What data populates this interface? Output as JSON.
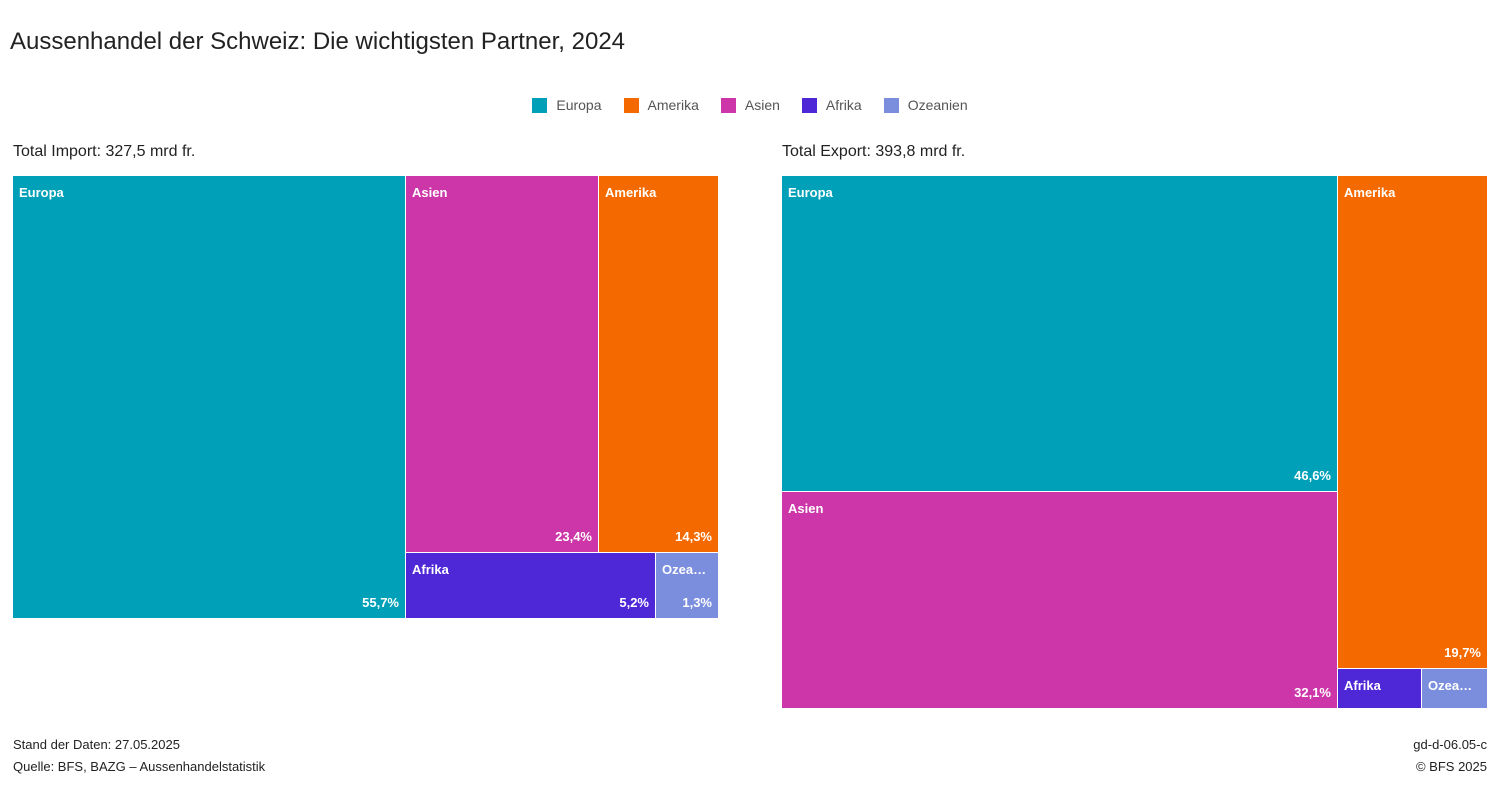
{
  "title": "Aussenhandel der Schweiz: Die wichtigsten Partner, 2024",
  "legend": [
    {
      "label": "Europa",
      "color": "#00a1b8"
    },
    {
      "label": "Amerika",
      "color": "#f46a00"
    },
    {
      "label": "Asien",
      "color": "#cc36a8"
    },
    {
      "label": "Afrika",
      "color": "#4e27d6"
    },
    {
      "label": "Ozeanien",
      "color": "#7b8ddd"
    }
  ],
  "chart_data": [
    {
      "type": "treemap",
      "title": "Total Import: 327,5 mrd fr.",
      "unit": "%",
      "items": [
        {
          "name": "Europa",
          "label": "Europa",
          "value": 55.7,
          "value_label": "55,7%"
        },
        {
          "name": "Asien",
          "label": "Asien",
          "value": 23.4,
          "value_label": "23,4%"
        },
        {
          "name": "Amerika",
          "label": "Amerika",
          "value": 14.3,
          "value_label": "14,3%"
        },
        {
          "name": "Afrika",
          "label": "Afrika",
          "value": 5.2,
          "value_label": "5,2%"
        },
        {
          "name": "Ozeanien",
          "label": "Ozea…",
          "value": 1.3,
          "value_label": "1,3%"
        }
      ]
    },
    {
      "type": "treemap",
      "title": "Total Export: 393,8 mrd fr.",
      "unit": "%",
      "items": [
        {
          "name": "Europa",
          "label": "Europa",
          "value": 46.6,
          "value_label": "46,6%"
        },
        {
          "name": "Amerika",
          "label": "Amerika",
          "value": 19.7,
          "value_label": "19,7%"
        },
        {
          "name": "Asien",
          "label": "Asien",
          "value": 32.1,
          "value_label": "32,1%"
        },
        {
          "name": "Afrika",
          "label": "Afrika",
          "value": 1.0,
          "value_label": ""
        },
        {
          "name": "Ozeanien",
          "label": "Ozea…",
          "value": 0.6,
          "value_label": ""
        }
      ]
    }
  ],
  "footer": {
    "date": "Stand der Daten: 27.05.2025",
    "source": "Quelle: BFS, BAZG – Aussenhandelstatistik",
    "code": "gd-d-06.05-c",
    "copyright": "© BFS 2025"
  }
}
